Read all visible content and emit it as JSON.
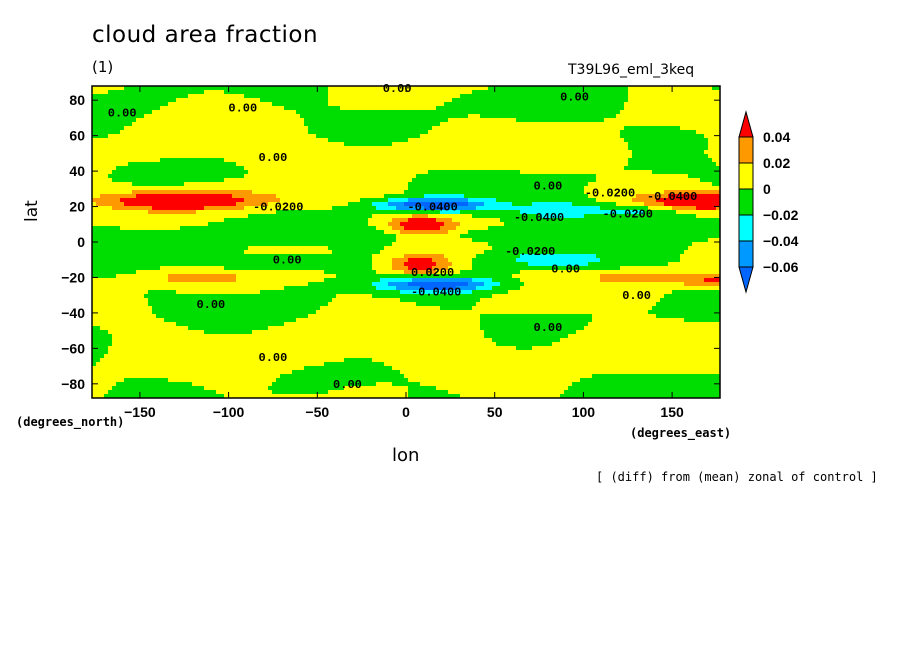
{
  "title": "cloud area fraction",
  "units": "(1)",
  "run": "T39L96_eml_3keq",
  "xlabel": "lon",
  "ylabel": "lat",
  "x_unit": "(degrees_east)",
  "y_unit": "(degrees_north)",
  "note": "[ (diff) from (mean) zonal of control ]",
  "chart_data": {
    "type": "heatmap",
    "title": "cloud area fraction",
    "xlabel": "lon",
    "ylabel": "lat",
    "xlim": [
      -177,
      177
    ],
    "ylim": [
      -88,
      88
    ],
    "x_ticks": [
      -150,
      -100,
      -50,
      0,
      50,
      100,
      150
    ],
    "y_ticks": [
      80,
      60,
      40,
      20,
      0,
      -20,
      -40,
      -60,
      -80
    ],
    "colorbar": {
      "levels": [
        "0.04",
        "0.02",
        "0",
        "−0.02",
        "−0.04",
        "−0.06"
      ],
      "colors": [
        "#ff0000",
        "#ff9900",
        "#ffff00",
        "#00dd00",
        "#00ffff",
        "#0099ff",
        "#ff0000",
        "#0066ff"
      ]
    },
    "contour_labels": [
      {
        "text": "0.00",
        "lon": -5,
        "lat": 87
      },
      {
        "text": "0.00",
        "lon": 95,
        "lat": 82
      },
      {
        "text": "0.00",
        "lon": -160,
        "lat": 73
      },
      {
        "text": "0.00",
        "lon": -92,
        "lat": 76
      },
      {
        "text": "0.00",
        "lon": -75,
        "lat": 48
      },
      {
        "text": "-0.0200",
        "lon": -72,
        "lat": 20
      },
      {
        "text": "0.00",
        "lon": 80,
        "lat": 32
      },
      {
        "text": "-0.0200",
        "lon": 115,
        "lat": 28
      },
      {
        "text": "-0.0400",
        "lon": 150,
        "lat": 26
      },
      {
        "text": "-0.0200",
        "lon": 125,
        "lat": 16
      },
      {
        "text": "-0.0400",
        "lon": 15,
        "lat": 20
      },
      {
        "text": "-0.0400",
        "lon": 75,
        "lat": 14
      },
      {
        "text": "-0.0200",
        "lon": 70,
        "lat": -5
      },
      {
        "text": "0.00",
        "lon": -67,
        "lat": -10
      },
      {
        "text": "0.00",
        "lon": 90,
        "lat": -15
      },
      {
        "text": "0.0200",
        "lon": 15,
        "lat": -17
      },
      {
        "text": "-0.0400",
        "lon": 17,
        "lat": -28
      },
      {
        "text": "0.00",
        "lon": 130,
        "lat": -30
      },
      {
        "text": "0.00",
        "lon": -110,
        "lat": -35
      },
      {
        "text": "0.00",
        "lon": 80,
        "lat": -48
      },
      {
        "text": "0.00",
        "lon": -75,
        "lat": -65
      },
      {
        "text": "0.00",
        "lon": -33,
        "lat": -80
      }
    ]
  }
}
